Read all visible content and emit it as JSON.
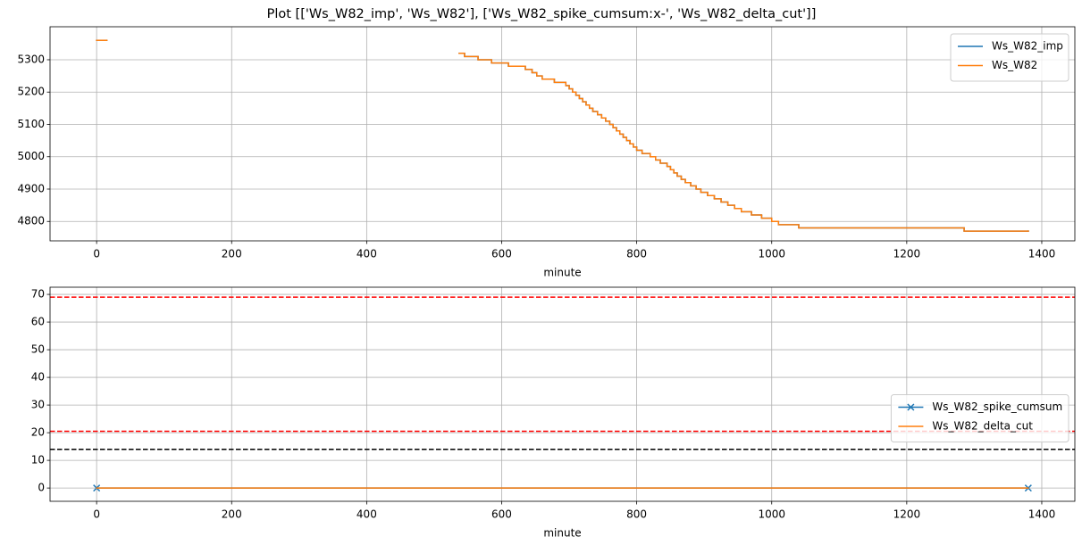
{
  "title": "Plot [['Ws_W82_imp', 'Ws_W82'], ['Ws_W82_spike_cumsum:x-', 'Ws_W82_delta_cut']]",
  "chart_data": [
    {
      "type": "line",
      "drawstyle": "steps-post",
      "xlabel": "minute",
      "xlim": [
        -69,
        1449
      ],
      "ylim": [
        4740,
        5402
      ],
      "xticks": [
        0,
        200,
        400,
        600,
        800,
        1000,
        1200,
        1400
      ],
      "yticks": [
        4800,
        4900,
        5000,
        5100,
        5200,
        5300
      ],
      "grid": true,
      "legend": "upper right",
      "x": [
        0,
        15,
        300,
        537,
        545,
        565,
        585,
        610,
        635,
        645,
        652,
        660,
        678,
        695,
        700,
        705,
        710,
        715,
        720,
        725,
        730,
        735,
        742,
        748,
        754,
        760,
        765,
        770,
        775,
        780,
        785,
        790,
        795,
        800,
        808,
        820,
        828,
        835,
        845,
        850,
        855,
        860,
        866,
        872,
        880,
        888,
        895,
        905,
        915,
        925,
        935,
        945,
        955,
        970,
        985,
        1000,
        1010,
        1040,
        1285,
        1380
      ],
      "series": [
        {
          "name": "Ws_W82_imp",
          "color": "#1f77b4",
          "values": [
            5360,
            5360,
            null,
            5320,
            5310,
            5300,
            5290,
            5280,
            5270,
            5260,
            5250,
            5240,
            5230,
            5220,
            5210,
            5200,
            5190,
            5180,
            5170,
            5160,
            5150,
            5140,
            5130,
            5120,
            5110,
            5100,
            5090,
            5080,
            5070,
            5060,
            5050,
            5040,
            5030,
            5020,
            5010,
            5000,
            4990,
            4980,
            4970,
            4960,
            4950,
            4940,
            4930,
            4920,
            4910,
            4900,
            4890,
            4880,
            4870,
            4860,
            4850,
            4840,
            4830,
            4820,
            4810,
            4800,
            4790,
            4780,
            4770,
            4770
          ]
        },
        {
          "name": "Ws_W82",
          "color": "#ff7f0e",
          "values": [
            5360,
            5360,
            null,
            5320,
            5310,
            5300,
            5290,
            5280,
            5270,
            5260,
            5250,
            5240,
            5230,
            5220,
            5210,
            5200,
            5190,
            5180,
            5170,
            5160,
            5150,
            5140,
            5130,
            5120,
            5110,
            5100,
            5090,
            5080,
            5070,
            5060,
            5050,
            5040,
            5030,
            5020,
            5010,
            5000,
            4990,
            4980,
            4970,
            4960,
            4950,
            4940,
            4930,
            4920,
            4910,
            4900,
            4890,
            4880,
            4870,
            4860,
            4850,
            4840,
            4830,
            4820,
            4810,
            4800,
            4790,
            4780,
            4770,
            4770
          ]
        }
      ]
    },
    {
      "type": "line",
      "xlabel": "minute",
      "xlim": [
        -69,
        1449
      ],
      "ylim": [
        -4.8,
        72.6
      ],
      "xticks": [
        0,
        200,
        400,
        600,
        800,
        1000,
        1200,
        1400
      ],
      "yticks": [
        0,
        10,
        20,
        30,
        40,
        50,
        60,
        70
      ],
      "grid": true,
      "legend": "center right",
      "x": [
        0,
        1380
      ],
      "series": [
        {
          "name": "Ws_W82_spike_cumsum",
          "color": "#1f77b4",
          "marker": "x",
          "values": [
            0,
            0
          ]
        },
        {
          "name": "Ws_W82_delta_cut",
          "color": "#ff7f0e",
          "values": [
            0,
            0
          ]
        }
      ],
      "hlines": [
        {
          "value": 69,
          "color": "red"
        },
        {
          "value": 20.5,
          "color": "red"
        },
        {
          "value": 14,
          "color": "black"
        }
      ]
    }
  ]
}
